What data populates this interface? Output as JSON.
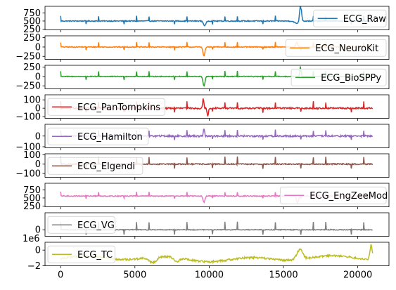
{
  "chart_data": {
    "type": "line",
    "x_axis": {
      "range": [
        -1050,
        22100
      ],
      "ticks": [
        0,
        5000,
        10000,
        15000,
        20000
      ],
      "tick_labels": [
        "0",
        "5000",
        "10000",
        "15000",
        "20000"
      ],
      "shown_on": "bottom-panel-only"
    },
    "n_samples": 21000,
    "grid": false,
    "panels": [
      {
        "name": "ECG_Raw",
        "color": "#1f77b4",
        "legend_loc": "right",
        "ylim": [
          230,
          950
        ],
        "yticks": [
          250,
          500,
          750
        ],
        "ytick_labels": [
          "250",
          "500",
          "750"
        ],
        "offset_text": "",
        "baseline": 500,
        "noise": 14,
        "beat_amp": 150,
        "beat_width": 25,
        "events": [
          {
            "x": 9700,
            "delta": -140,
            "width": 120
          },
          {
            "x": 15900,
            "delta": -70,
            "width": 220
          },
          {
            "x": 16150,
            "delta": 520,
            "width": 90
          }
        ]
      },
      {
        "name": "ECG_NeuroKit",
        "color": "#ff7f0e",
        "legend_loc": "right",
        "ylim": [
          -330,
          300
        ],
        "yticks": [
          -250,
          0,
          250
        ],
        "ytick_labels": [
          "−250",
          "0",
          "250"
        ],
        "offset_text": "",
        "baseline": 0,
        "noise": 12,
        "beat_amp": 130,
        "beat_width": 25,
        "events": [
          {
            "x": 9650,
            "delta": -240,
            "width": 90
          },
          {
            "x": 15900,
            "delta": 120,
            "width": 100
          }
        ]
      },
      {
        "name": "ECG_BioSPPy",
        "color": "#2ca02c",
        "legend_loc": "right",
        "ylim": [
          -330,
          300
        ],
        "yticks": [
          -250,
          0,
          250
        ],
        "ytick_labels": [
          "−250",
          "0",
          "250"
        ],
        "offset_text": "",
        "baseline": 0,
        "noise": 10,
        "beat_amp": 140,
        "beat_width": 25,
        "events": [
          {
            "x": 9650,
            "delta": -260,
            "width": 90
          },
          {
            "x": 16150,
            "delta": 280,
            "width": 60
          }
        ]
      },
      {
        "name": "ECG_PanTompkins",
        "color": "#d62728",
        "legend_loc": "left",
        "ylim": [
          -120,
          160
        ],
        "yticks": [
          -100,
          0,
          100
        ],
        "ytick_labels": [
          "−100",
          "0",
          "100"
        ],
        "offset_text": "",
        "baseline": 0,
        "noise": 9,
        "beat_amp": 75,
        "beat_width": 25,
        "events": [
          {
            "x": 9600,
            "delta": 110,
            "width": 60
          },
          {
            "x": 9900,
            "delta": -100,
            "width": 60
          }
        ]
      },
      {
        "name": "ECG_Hamilton",
        "color": "#9467bd",
        "legend_loc": "left",
        "ylim": [
          -110,
          110
        ],
        "yticks": [
          -100,
          0
        ],
        "ytick_labels": [
          "−100",
          "0"
        ],
        "offset_text": "",
        "baseline": 0,
        "noise": 8,
        "beat_amp": 55,
        "beat_width": 25,
        "events": [
          {
            "x": 9650,
            "delta": 70,
            "width": 60
          }
        ]
      },
      {
        "name": "ECG_Elgendi",
        "color": "#8c564b",
        "legend_loc": "left",
        "ylim": [
          -140,
          110
        ],
        "yticks": [
          -100,
          0,
          100
        ],
        "ytick_labels": [
          "−100",
          "0",
          "100"
        ],
        "offset_text": "",
        "baseline": 0,
        "noise": 6,
        "beat_amp": 75,
        "beat_width": 25,
        "events": []
      },
      {
        "name": "ECG_EngZeeMod",
        "color": "#e377c2",
        "legend_loc": "right",
        "ylim": [
          230,
          950
        ],
        "yticks": [
          250,
          500,
          750
        ],
        "ytick_labels": [
          "250",
          "500",
          "750"
        ],
        "offset_text": "",
        "baseline": 560,
        "noise": 14,
        "beat_amp": 120,
        "beat_width": 25,
        "events": [
          {
            "x": 9650,
            "delta": -200,
            "width": 90
          },
          {
            "x": 15950,
            "delta": -220,
            "width": 90
          }
        ]
      },
      {
        "name": "ECG_VG",
        "color": "#7f7f7f",
        "legend_loc": "left",
        "ylim": [
          -0.5,
          1.3
        ],
        "yticks": [
          0
        ],
        "ytick_labels": [
          "0"
        ],
        "offset_text": "",
        "baseline": 0,
        "noise": 0.03,
        "beat_amp": 0.6,
        "beat_width": 25,
        "events": []
      },
      {
        "name": "ECG_TC",
        "color": "#bcbd22",
        "legend_loc": "left",
        "ylim": [
          -2.0,
          1.0
        ],
        "yticks": [
          -2,
          0
        ],
        "ytick_labels": [
          "−2",
          "0"
        ],
        "offset_text": "1e6",
        "baseline": -1.1,
        "noise": 0.12,
        "beat_amp": 0.0,
        "beat_width": 25,
        "events": [
          {
            "x": 6200,
            "delta": -0.7,
            "width": 350
          },
          {
            "x": 7800,
            "delta": -0.5,
            "width": 250
          },
          {
            "x": 16100,
            "delta": 1.3,
            "width": 280
          },
          {
            "x": 20900,
            "delta": 1.9,
            "width": 120
          }
        ]
      }
    ]
  }
}
